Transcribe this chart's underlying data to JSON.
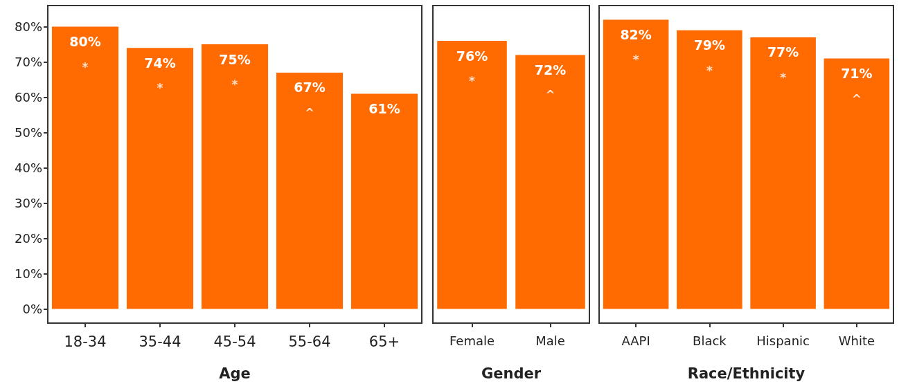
{
  "chart_data": [
    {
      "type": "bar",
      "xlabel": "Age",
      "categories": [
        "18-34",
        "35-44",
        "45-54",
        "55-64",
        "65+"
      ],
      "values": [
        80,
        74,
        75,
        67,
        61
      ],
      "color": "#ff6b00",
      "value_labels": [
        "80%",
        "74%",
        "75%",
        "67%",
        "61%"
      ],
      "ylim": [
        -4,
        86
      ],
      "yticks": [
        {
          "value": 0,
          "label": "0%"
        },
        {
          "value": 10,
          "label": "10%"
        },
        {
          "value": 20,
          "label": "20%"
        },
        {
          "value": 30,
          "label": "30%"
        },
        {
          "value": 40,
          "label": "40%"
        },
        {
          "value": 50,
          "label": "50%"
        },
        {
          "value": 60,
          "label": "60%"
        },
        {
          "value": 70,
          "label": "70%"
        },
        {
          "value": 80,
          "label": "80%"
        }
      ],
      "grid": false,
      "annotations": [
        {
          "text": "*",
          "x": "18-34",
          "y": 80
        },
        {
          "text": "*",
          "x": "35-44",
          "y": 74
        },
        {
          "text": "*",
          "x": "45-54",
          "y": 75
        },
        {
          "text": "^",
          "x": "55-64",
          "y": 67
        }
      ]
    },
    {
      "type": "bar",
      "xlabel": "Gender",
      "categories": [
        "Female",
        "Male"
      ],
      "values": [
        76,
        72
      ],
      "color": "#ff6b00",
      "value_labels": [
        "76%",
        "72%"
      ],
      "ylim": [
        -4,
        86
      ],
      "yticks": [
        {
          "value": 0,
          "label": "0%"
        },
        {
          "value": 10,
          "label": "10%"
        },
        {
          "value": 20,
          "label": "20%"
        },
        {
          "value": 30,
          "label": "30%"
        },
        {
          "value": 40,
          "label": "40%"
        },
        {
          "value": 50,
          "label": "50%"
        },
        {
          "value": 60,
          "label": "60%"
        },
        {
          "value": 70,
          "label": "70%"
        },
        {
          "value": 80,
          "label": "80%"
        }
      ],
      "tick_labels": "x",
      "grid": false,
      "annotations": [
        {
          "text": "*",
          "x": "Female",
          "y": 76
        },
        {
          "text": "^",
          "x": "Male",
          "y": 72
        }
      ]
    },
    {
      "type": "bar",
      "xlabel": "Race/Ethnicity",
      "categories": [
        "AAPI",
        "Black",
        "Hispanic",
        "White"
      ],
      "values": [
        82,
        79,
        77,
        71
      ],
      "color": "#ff6b00",
      "value_labels": [
        "82%",
        "79%",
        "77%",
        "71%"
      ],
      "ylim": [
        -4,
        86
      ],
      "yticks": [
        {
          "value": 0,
          "label": "0%"
        },
        {
          "value": 10,
          "label": "10%"
        },
        {
          "value": 20,
          "label": "20%"
        },
        {
          "value": 30,
          "label": "30%"
        },
        {
          "value": 40,
          "label": "40%"
        },
        {
          "value": 50,
          "label": "50%"
        },
        {
          "value": 60,
          "label": "60%"
        },
        {
          "value": 70,
          "label": "70%"
        },
        {
          "value": 80,
          "label": "80%"
        }
      ],
      "tick_labels": "x",
      "grid": false,
      "annotations": [
        {
          "text": "*",
          "x": "AAPI",
          "y": 82
        },
        {
          "text": "*",
          "x": "Black",
          "y": 79
        },
        {
          "text": "*",
          "x": "Hispanic",
          "y": 77
        },
        {
          "text": "^",
          "x": "White",
          "y": 71
        }
      ]
    }
  ]
}
